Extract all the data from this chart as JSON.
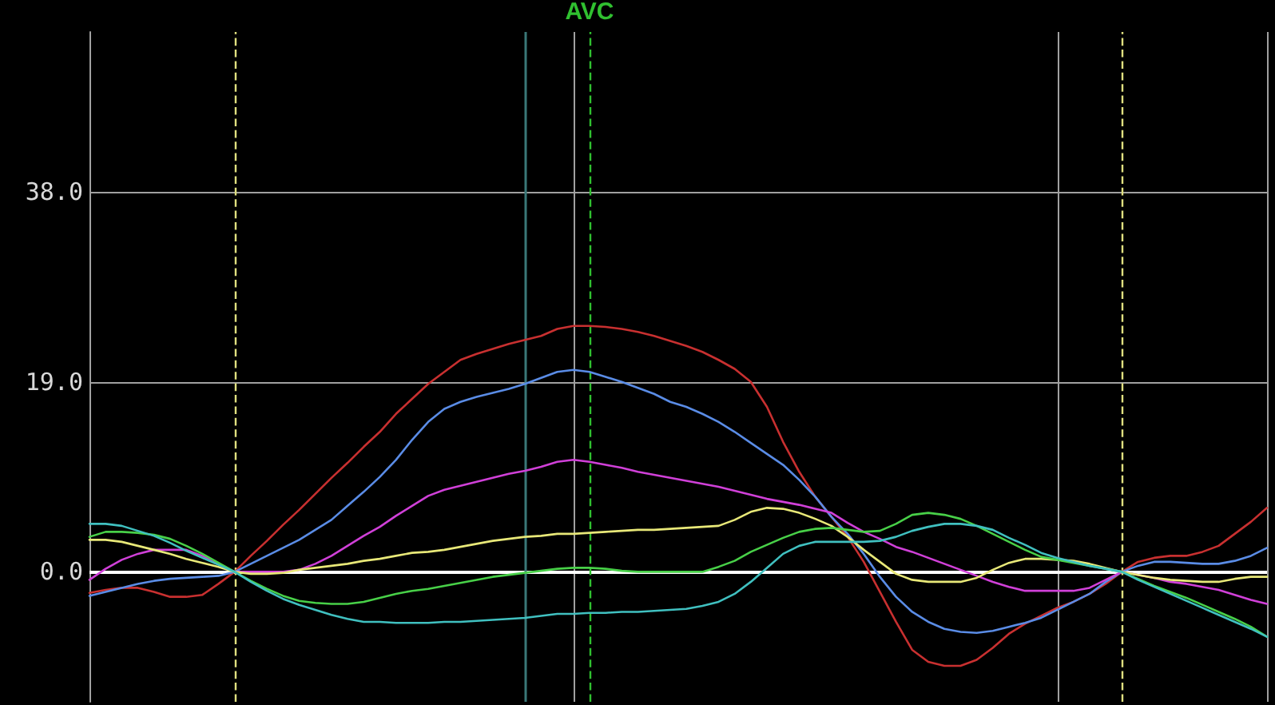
{
  "chart_data": {
    "type": "line",
    "categories": [
      null,
      null,
      null,
      null,
      null,
      null,
      null,
      null,
      null,
      null,
      null,
      null,
      null,
      null,
      null,
      null,
      null,
      null,
      null,
      null,
      null,
      null,
      null,
      null,
      null,
      null,
      null,
      null,
      null,
      null,
      null,
      null,
      null,
      null,
      null,
      null,
      null,
      null,
      null,
      null,
      null,
      null,
      null,
      null,
      null,
      null,
      null,
      null,
      null,
      null,
      null,
      null,
      null,
      null,
      null,
      null,
      null,
      null,
      null,
      null,
      null,
      null,
      null,
      null,
      null,
      null,
      null,
      null,
      null,
      null,
      null,
      null,
      null,
      null
    ],
    "ylim": [
      -13,
      54
    ],
    "yticks": [
      {
        "value": 0,
        "label": "0.0"
      },
      {
        "value": 19,
        "label": "19.0"
      },
      {
        "value": 38,
        "label": "38.0"
      }
    ],
    "tick_labels": "y",
    "grid": true,
    "marker": "none",
    "line_style": "solid",
    "annotations": [
      "AVC"
    ],
    "ref_lines": [
      {
        "axis": "y",
        "value": 0,
        "color": "#ffffff",
        "line_style": "solid"
      }
    ],
    "series": [
      {
        "color": "#c83030",
        "values": [
          -2.1,
          -1.8,
          -1.6,
          -1.6,
          -2.0,
          -2.5,
          -2.5,
          -2.3,
          -1.2,
          0,
          1.6,
          3.1,
          4.7,
          6.2,
          7.8,
          9.4,
          10.9,
          12.5,
          14.0,
          15.8,
          17.3,
          18.8,
          20.0,
          21.2,
          21.8,
          22.3,
          22.8,
          23.2,
          23.6,
          24.3,
          24.6,
          24.6,
          24.5,
          24.3,
          24.0,
          23.6,
          23.1,
          22.6,
          22.0,
          21.2,
          20.3,
          19.0,
          16.5,
          13.0,
          10.0,
          7.5,
          5.5,
          3.5,
          1.0,
          -2.0,
          -5.0,
          -7.8,
          -9.0,
          -9.4,
          -9.4,
          -8.8,
          -7.6,
          -6.2,
          -5.2,
          -4.4,
          -3.6,
          -3.0,
          -2.2,
          -1.2,
          0,
          1.0,
          1.4,
          1.6,
          1.6,
          2.0,
          2.6,
          3.8,
          5.0,
          6.4
        ]
      },
      {
        "color": "#5a8ce6",
        "values": [
          -2.4,
          -2.0,
          -1.6,
          -1.2,
          -0.9,
          -0.7,
          -0.6,
          -0.5,
          -0.4,
          0,
          0.8,
          1.6,
          2.4,
          3.2,
          4.2,
          5.2,
          6.6,
          8.0,
          9.5,
          11.2,
          13.2,
          15.0,
          16.3,
          17.0,
          17.5,
          17.9,
          18.3,
          18.8,
          19.4,
          20.0,
          20.2,
          20.0,
          19.5,
          19.0,
          18.4,
          17.8,
          17.0,
          16.5,
          15.8,
          15.0,
          14.0,
          12.9,
          11.8,
          10.7,
          9.2,
          7.5,
          5.5,
          3.8,
          1.8,
          -0.5,
          -2.5,
          -4.0,
          -5.0,
          -5.7,
          -6.0,
          -6.1,
          -5.9,
          -5.5,
          -5.1,
          -4.6,
          -3.8,
          -3.0,
          -2.2,
          -1.0,
          0,
          0.6,
          1.0,
          1.0,
          0.9,
          0.8,
          0.8,
          1.1,
          1.6,
          2.4
        ]
      },
      {
        "color": "#d040d8",
        "values": [
          -0.8,
          0.3,
          1.2,
          1.8,
          2.2,
          2.2,
          2.2,
          1.6,
          0.8,
          0,
          0,
          0,
          0,
          0.2,
          0.8,
          1.6,
          2.6,
          3.6,
          4.5,
          5.6,
          6.6,
          7.6,
          8.2,
          8.6,
          9.0,
          9.4,
          9.8,
          10.1,
          10.5,
          11.0,
          11.2,
          11.0,
          10.7,
          10.4,
          10.0,
          9.7,
          9.4,
          9.1,
          8.8,
          8.5,
          8.1,
          7.7,
          7.3,
          7.0,
          6.7,
          6.3,
          5.9,
          4.9,
          4.0,
          3.3,
          2.5,
          2.0,
          1.4,
          0.8,
          0.2,
          -0.4,
          -1.0,
          -1.5,
          -1.9,
          -1.9,
          -1.9,
          -1.9,
          -1.6,
          -0.8,
          0,
          -0.3,
          -0.6,
          -1.0,
          -1.2,
          -1.5,
          -1.8,
          -2.3,
          -2.8,
          -3.2
        ]
      },
      {
        "color": "#e8e878",
        "values": [
          3.2,
          3.2,
          3.0,
          2.6,
          2.2,
          1.8,
          1.3,
          0.9,
          0.5,
          0,
          -0.2,
          -0.2,
          -0.1,
          0.2,
          0.4,
          0.6,
          0.8,
          1.1,
          1.3,
          1.6,
          1.9,
          2.0,
          2.2,
          2.5,
          2.8,
          3.1,
          3.3,
          3.5,
          3.6,
          3.8,
          3.8,
          3.9,
          4.0,
          4.1,
          4.2,
          4.2,
          4.3,
          4.4,
          4.5,
          4.6,
          5.2,
          6.0,
          6.4,
          6.3,
          5.9,
          5.3,
          4.6,
          3.5,
          2.2,
          1.0,
          -0.2,
          -0.8,
          -1.0,
          -1.0,
          -1.0,
          -0.6,
          0.2,
          0.9,
          1.3,
          1.3,
          1.2,
          1.1,
          0.8,
          0.4,
          0,
          -0.3,
          -0.6,
          -0.8,
          -0.9,
          -1.0,
          -1.0,
          -0.7,
          -0.5,
          -0.5
        ]
      },
      {
        "color": "#48d048",
        "values": [
          3.5,
          4.0,
          4.0,
          3.9,
          3.7,
          3.3,
          2.6,
          1.8,
          0.9,
          0,
          -0.9,
          -1.7,
          -2.4,
          -2.9,
          -3.1,
          -3.2,
          -3.2,
          -3.0,
          -2.6,
          -2.2,
          -1.9,
          -1.7,
          -1.4,
          -1.1,
          -0.8,
          -0.5,
          -0.3,
          -0.1,
          0.1,
          0.3,
          0.4,
          0.4,
          0.3,
          0.1,
          0,
          0,
          0,
          0,
          0,
          0.5,
          1.1,
          2.0,
          2.7,
          3.4,
          4.0,
          4.3,
          4.4,
          4.2,
          4.0,
          4.1,
          4.8,
          5.7,
          5.9,
          5.7,
          5.3,
          4.6,
          3.8,
          3.0,
          2.2,
          1.5,
          1.2,
          0.9,
          0.6,
          0.3,
          0,
          -0.7,
          -1.4,
          -2.0,
          -2.6,
          -3.3,
          -4.0,
          -4.7,
          -5.5,
          -6.5
        ]
      },
      {
        "color": "#40c0c0",
        "values": [
          4.8,
          4.8,
          4.6,
          4.1,
          3.6,
          2.9,
          2.1,
          1.4,
          0.7,
          0,
          -1.0,
          -1.9,
          -2.7,
          -3.3,
          -3.8,
          -4.3,
          -4.7,
          -5.0,
          -5.0,
          -5.1,
          -5.1,
          -5.1,
          -5.0,
          -5.0,
          -4.9,
          -4.8,
          -4.7,
          -4.6,
          -4.4,
          -4.2,
          -4.2,
          -4.1,
          -4.1,
          -4.0,
          -4.0,
          -3.9,
          -3.8,
          -3.7,
          -3.4,
          -3.0,
          -2.2,
          -1.0,
          0.4,
          1.8,
          2.6,
          3.0,
          3.0,
          3.0,
          3.0,
          3.1,
          3.5,
          4.1,
          4.5,
          4.8,
          4.8,
          4.6,
          4.2,
          3.4,
          2.7,
          1.9,
          1.4,
          1.0,
          0.6,
          0.3,
          0,
          -0.8,
          -1.5,
          -2.2,
          -2.9,
          -3.6,
          -4.3,
          -5.0,
          -5.7,
          -6.5
        ]
      }
    ]
  }
}
